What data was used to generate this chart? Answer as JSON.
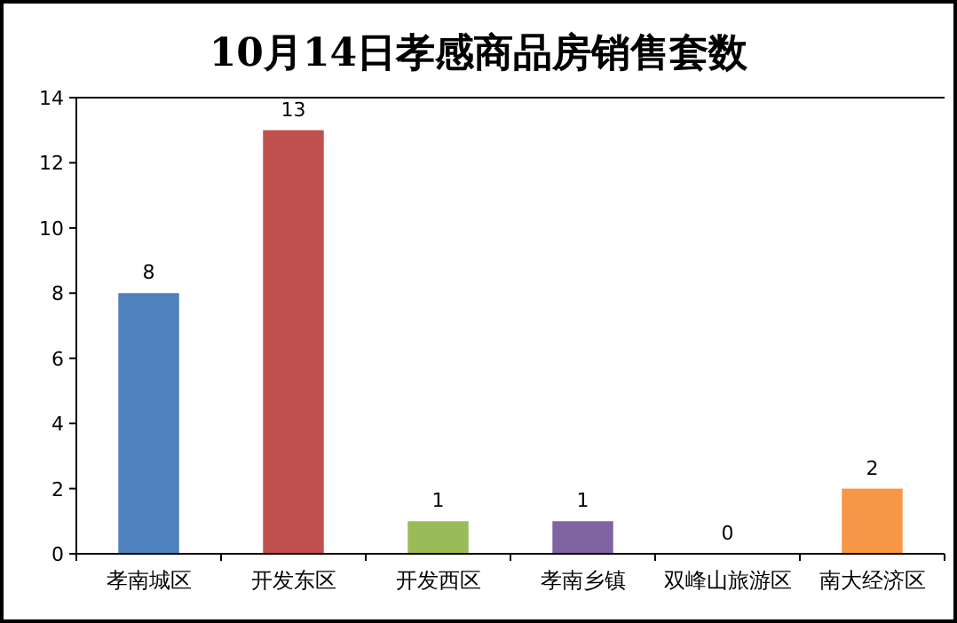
{
  "chart_data": {
    "type": "bar",
    "title": "10月14日孝感商品房销售套数",
    "categories": [
      "孝南城区",
      "开发东区",
      "开发西区",
      "孝南乡镇",
      "双峰山旅游区",
      "南大经济区"
    ],
    "values": [
      8,
      13,
      1,
      1,
      0,
      2
    ],
    "colors": [
      "#4f81bd",
      "#c0504d",
      "#9bbb59",
      "#8064a2",
      "#4bacc6",
      "#f79646"
    ],
    "ylim": [
      0,
      14
    ],
    "yticks": [
      0,
      2,
      4,
      6,
      8,
      10,
      12,
      14
    ],
    "data_labels": true,
    "grid": false
  }
}
